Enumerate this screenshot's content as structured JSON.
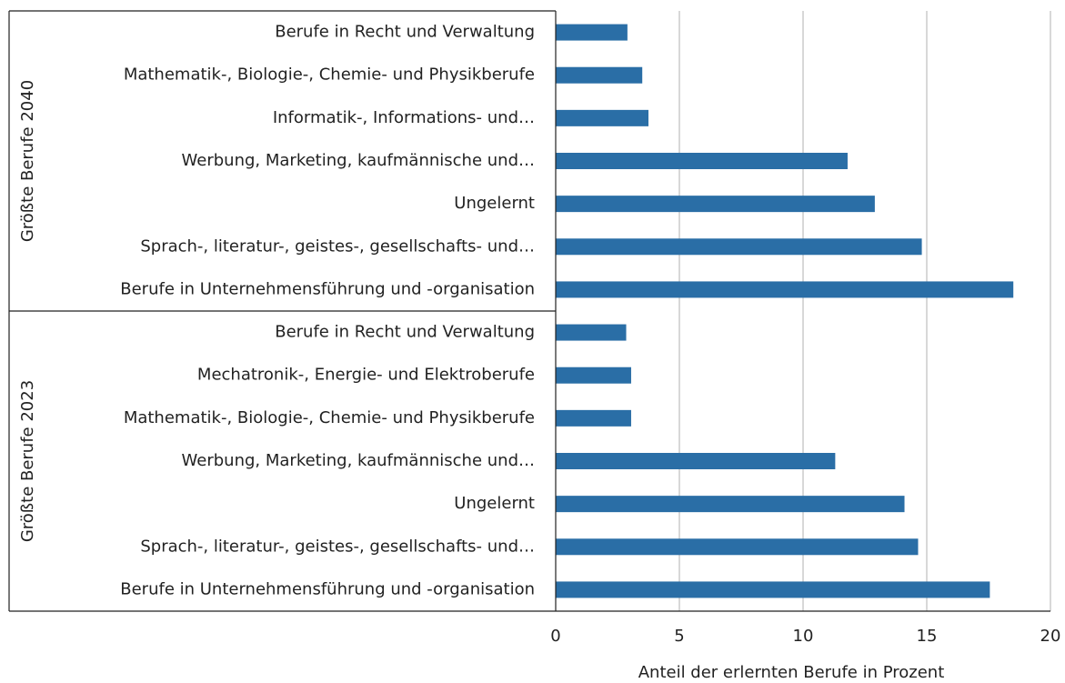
{
  "chart_data": {
    "type": "bar",
    "orientation": "horizontal",
    "color": "#2a6ea6",
    "x_label": "Anteil der erlernten Berufe in Prozent",
    "xlim": [
      0,
      20
    ],
    "xticks": [
      0,
      5,
      10,
      15,
      20
    ],
    "grid": true,
    "groups": [
      {
        "name": "Größte Berufe 2040",
        "categories": [
          "Berufe in Recht und Verwaltung",
          "Mathematik-, Biologie-, Chemie- und Physikberufe",
          "Informatik-, Informations- und…",
          "Werbung, Marketing, kaufmännische und…",
          "Ungelernt",
          "Sprach-, literatur-, geistes-, gesellschafts- und…",
          "Berufe in Unternehmensführung und -organisation"
        ],
        "values": [
          2.9,
          3.5,
          3.75,
          11.8,
          12.9,
          14.8,
          18.5
        ]
      },
      {
        "name": "Größte Berufe 2023",
        "categories": [
          "Berufe in Recht und Verwaltung",
          "Mechatronik-, Energie- und Elektroberufe",
          "Mathematik-, Biologie-, Chemie- und Physikberufe",
          "Werbung, Marketing, kaufmännische und…",
          "Ungelernt",
          "Sprach-, literatur-, geistes-, gesellschafts- und…",
          "Berufe in Unternehmensführung und -organisation"
        ],
        "values": [
          2.85,
          3.05,
          3.05,
          11.3,
          14.1,
          14.65,
          17.55
        ]
      }
    ]
  }
}
